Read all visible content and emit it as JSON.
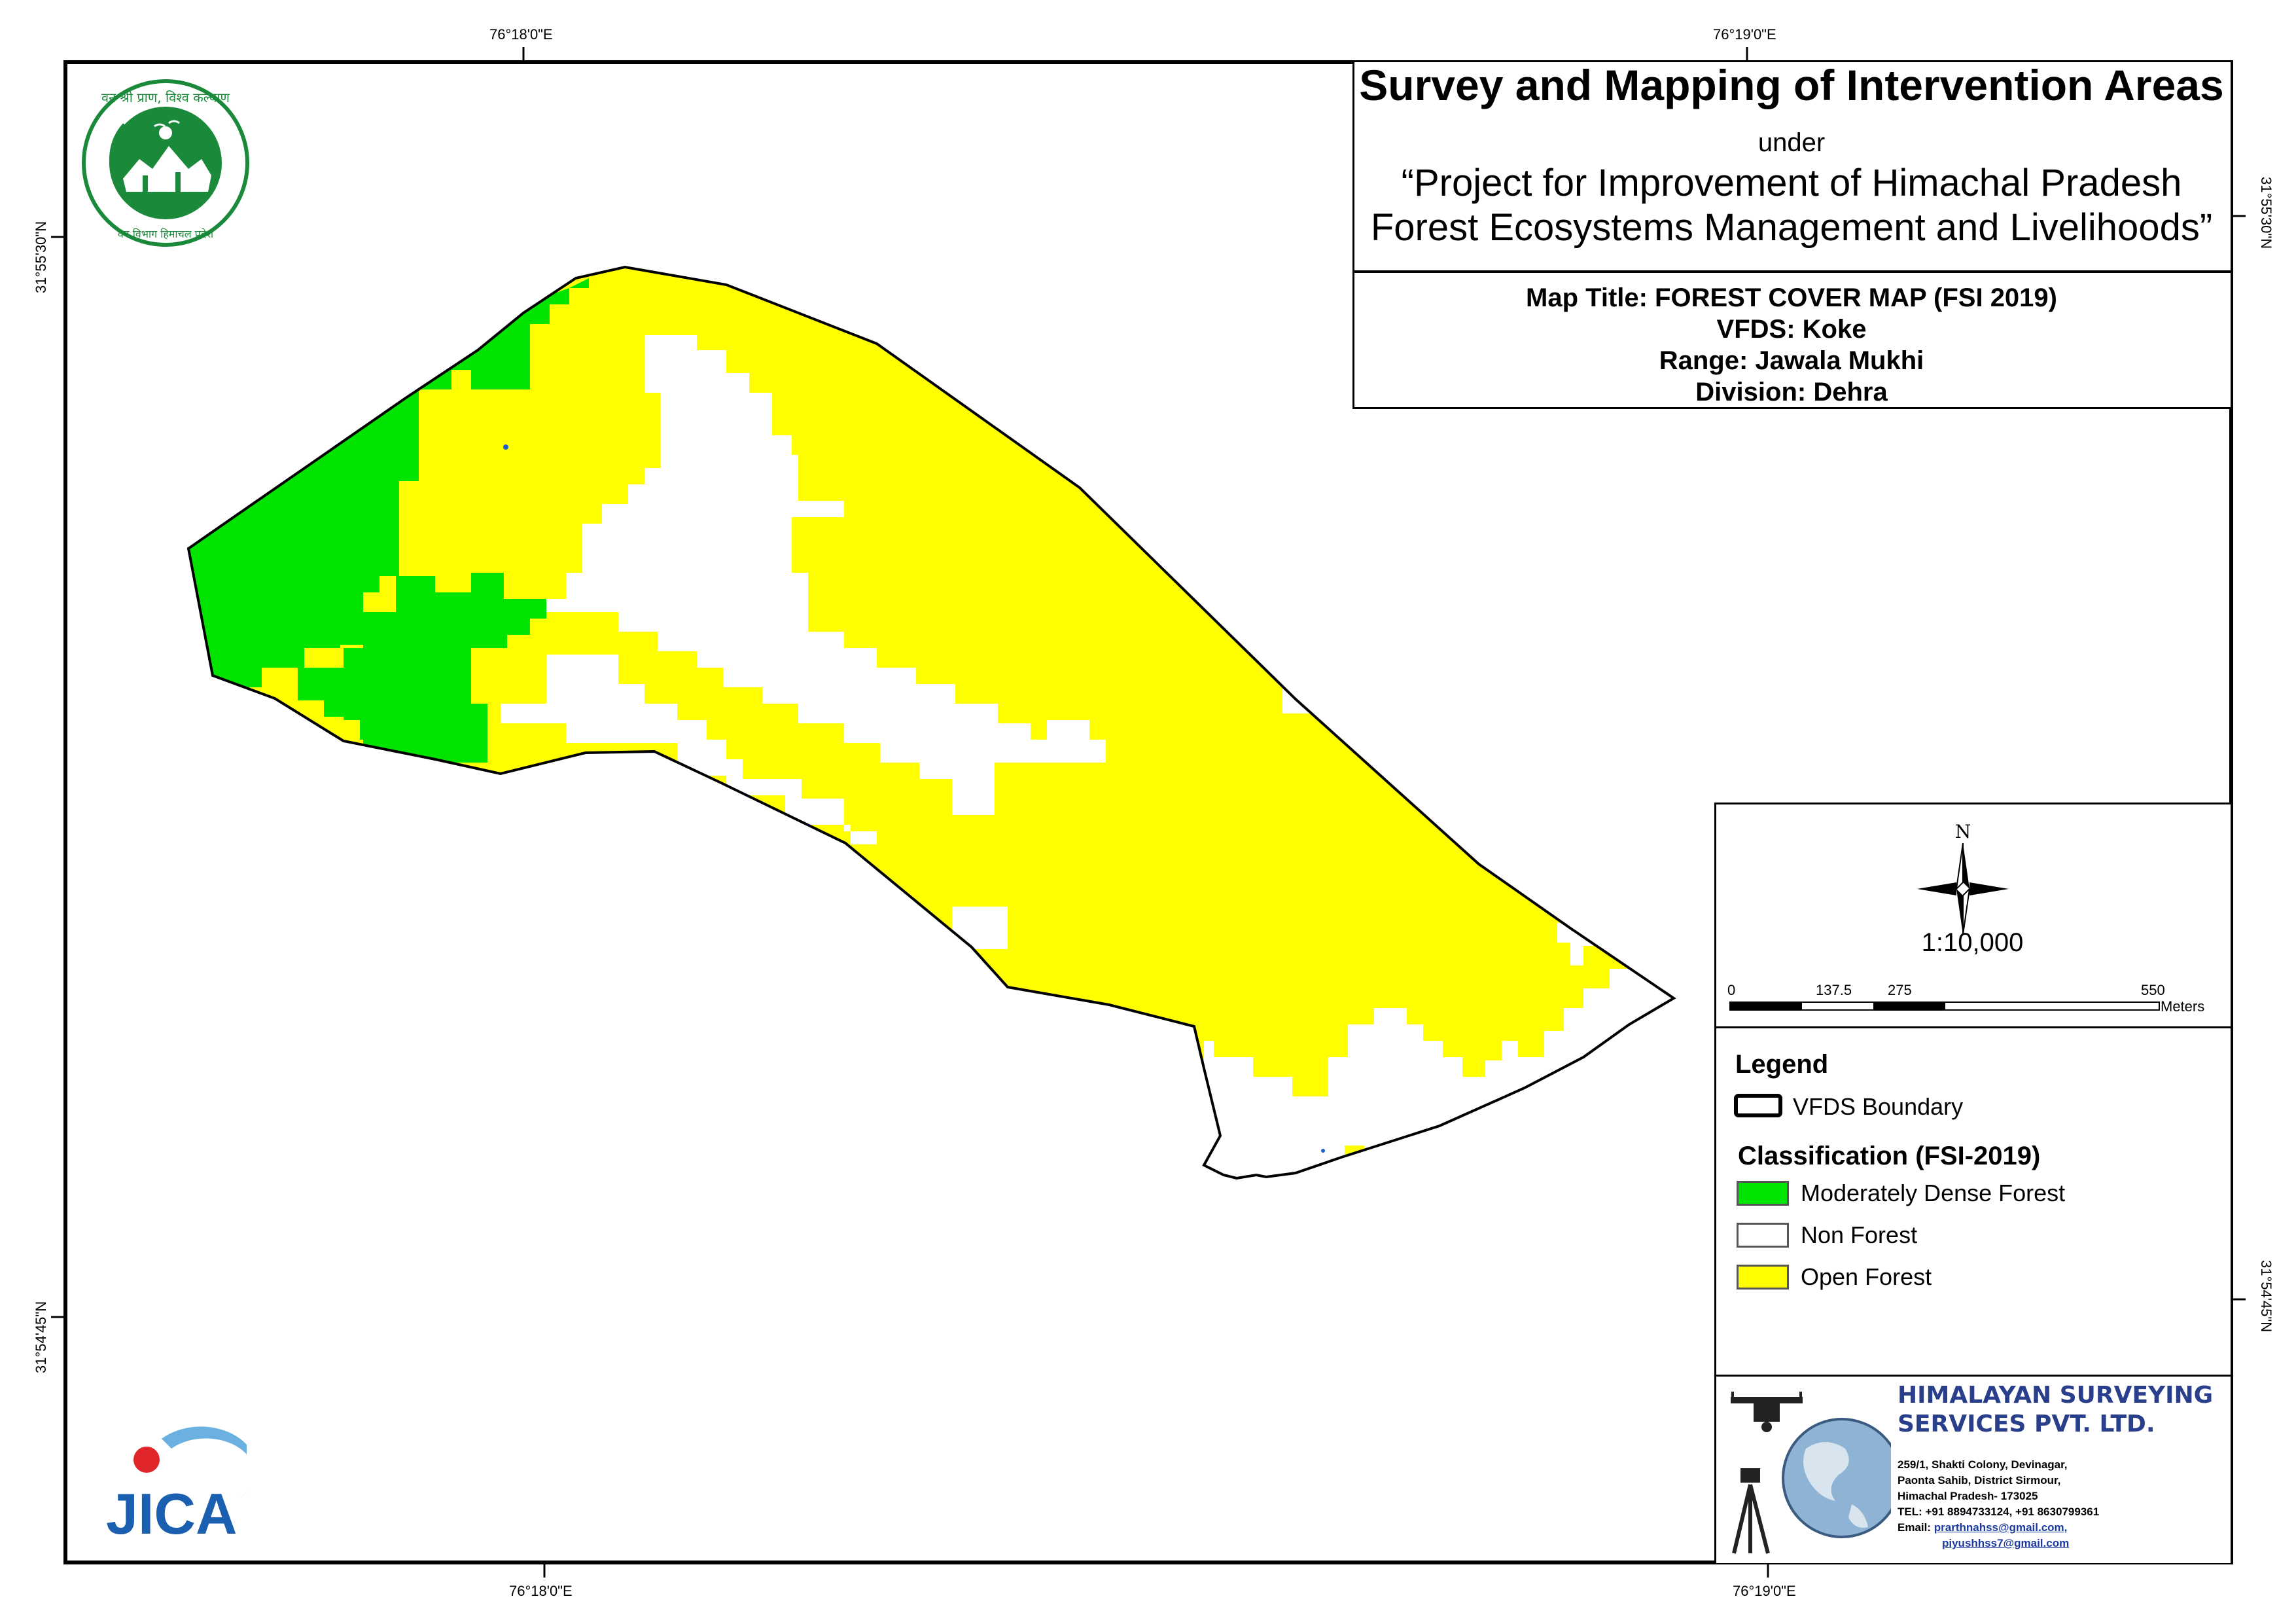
{
  "header": {
    "title": "Survey and Mapping of Intervention Areas",
    "under": "under",
    "project_line1": "“Project for Improvement of Himachal Pradesh",
    "project_line2": "Forest Ecosystems Management and Livelihoods”",
    "map_title": "Map Title: FOREST COVER MAP (FSI 2019)",
    "vfds": "VFDS: Koke",
    "range": "Range: Jawala Mukhi",
    "division": "Division: Dehra"
  },
  "coordinates": {
    "top_left": "76°18'0\"E",
    "top_right": "76°19'0\"E",
    "bottom_left": "76°18'0\"E",
    "bottom_right": "76°19'0\"E",
    "left_upper": "31°55'30\"N",
    "left_lower": "31°54'45\"N",
    "right_upper": "31°55'30\"N",
    "right_lower": "31°54'45\"N"
  },
  "north_label": "N",
  "scale": {
    "ratio": "1:10,000",
    "ticks": [
      "0",
      "137.5",
      "275",
      "550"
    ],
    "unit": "Meters"
  },
  "legend": {
    "heading": "Legend",
    "boundary_label": "VFDS Boundary",
    "classification_heading": "Classification (FSI-2019)",
    "classes": [
      {
        "label": "Moderately Dense Forest",
        "color": "#00e400"
      },
      {
        "label": "Non Forest",
        "color": "#ffffff"
      },
      {
        "label": "Open Forest",
        "color": "#ffff00"
      }
    ]
  },
  "company": {
    "name_line1": "HIMALAYAN SURVEYING",
    "name_line2": "SERVICES PVT. LTD.",
    "address": [
      "259/1, Shakti Colony, Devinagar,",
      "Paonta Sahib, District Sirmour,",
      "Himachal Pradesh- 173025",
      "TEL: +91 8894733124, +91 8630799361"
    ],
    "email_label": "Email:",
    "email1": "prarthnahss@gmail.com,",
    "email2": "piyushhss7@gmail.com"
  },
  "logos": {
    "top": "forest-department-emblem",
    "bottom_text": "JICA",
    "top_ring_text": "वन श्री प्राण, विश्व कल्याण"
  },
  "colors": {
    "open_forest": "#ffff00",
    "moderately_dense": "#00e400",
    "non_forest": "#ffffff",
    "emblem_green": "#1a8a3a",
    "jica_blue": "#1a5fb0",
    "jica_red": "#e0262b"
  }
}
